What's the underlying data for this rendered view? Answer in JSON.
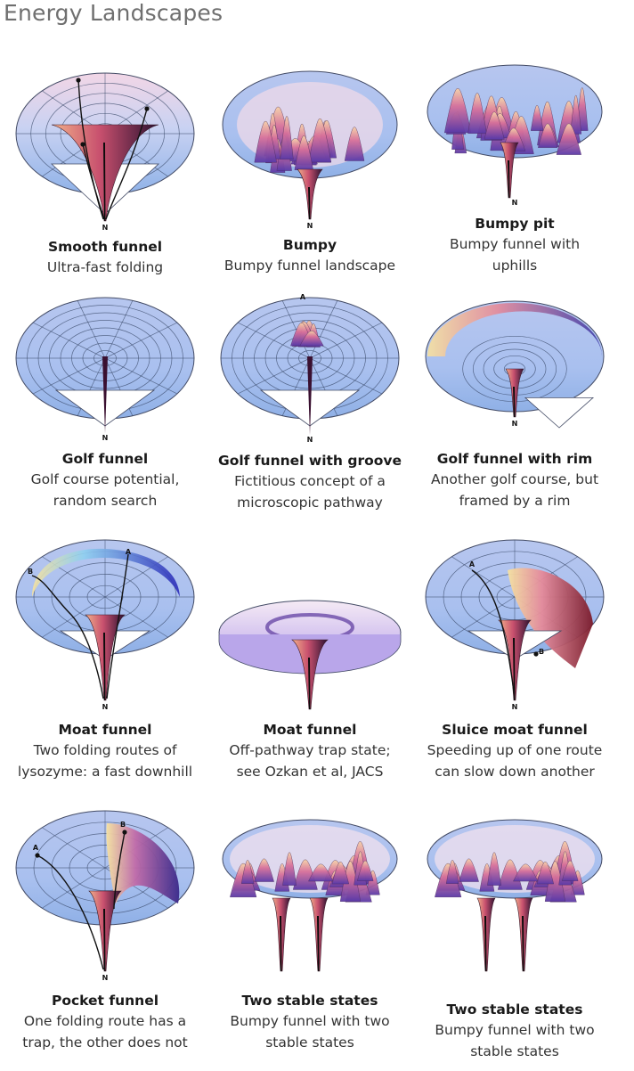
{
  "page_title": "Energy Landscapes",
  "marker_labels": {
    "native": "N",
    "a": "A",
    "b": "B"
  },
  "cells": [
    {
      "id": "smooth-funnel",
      "kind": "smooth",
      "title": "Smooth funnel",
      "lines": [
        "Ultra-fast folding"
      ]
    },
    {
      "id": "bumpy",
      "kind": "bumpy",
      "title": "Bumpy",
      "lines": [
        "Bumpy funnel landscape"
      ]
    },
    {
      "id": "bumpy-pit",
      "kind": "pit",
      "title": "Bumpy pit",
      "lines": [
        "Bumpy funnel with",
        "uphills"
      ]
    },
    {
      "id": "golf-funnel",
      "kind": "golf",
      "title": "Golf funnel",
      "lines": [
        "Golf course potential,",
        "random search"
      ]
    },
    {
      "id": "golf-funnel-groove",
      "kind": "groove",
      "title": "Golf funnel with groove",
      "lines": [
        "Fictitious concept of a",
        "microscopic pathway"
      ]
    },
    {
      "id": "golf-funnel-rim",
      "kind": "rim",
      "title": "Golf funnel with rim",
      "lines": [
        "Another golf course, but",
        "framed by a rim"
      ]
    },
    {
      "id": "moat-funnel-lysozyme",
      "kind": "moat",
      "title": "Moat funnel",
      "lines": [
        "Two folding routes of",
        "lysozyme: a fast downhill"
      ]
    },
    {
      "id": "moat-funnel-trap",
      "kind": "moat2",
      "title": "Moat funnel",
      "lines": [
        "Off-pathway trap state;",
        "see Ozkan et al, JACS"
      ]
    },
    {
      "id": "sluice-moat-funnel",
      "kind": "sluice",
      "title": "Sluice moat funnel",
      "lines": [
        "Speeding up of one route",
        "can slow down another"
      ]
    },
    {
      "id": "pocket-funnel",
      "kind": "pocket",
      "title": "Pocket funnel",
      "lines": [
        "One folding route has a",
        "trap, the other does not"
      ]
    },
    {
      "id": "two-stable-states-1",
      "kind": "two",
      "title": "Two stable states",
      "lines": [
        "Bumpy funnel with two",
        "stable states"
      ]
    },
    {
      "id": "two-stable-states-2",
      "kind": "two",
      "title": "Two stable states",
      "lines": [
        "Bumpy funnel with two",
        "stable states"
      ]
    }
  ]
}
